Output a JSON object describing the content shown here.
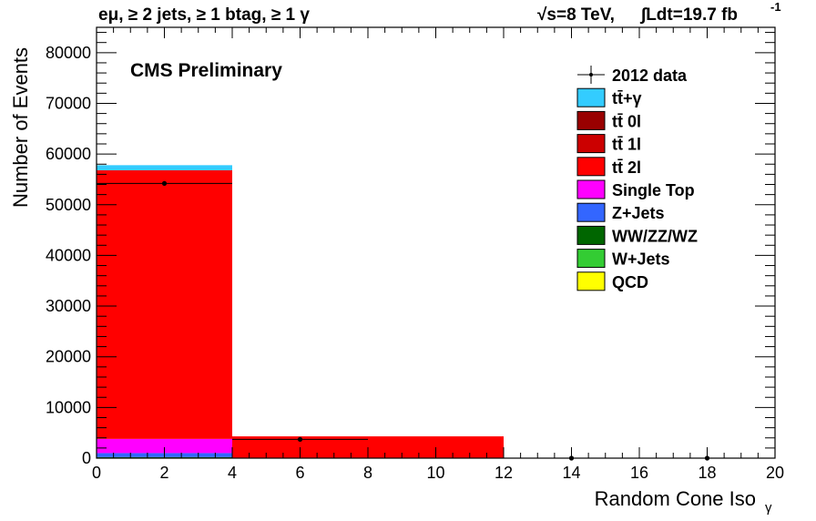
{
  "header": {
    "left_title": "eμ, ≥ 2 jets, ≥ 1 btag, ≥ 1 γ",
    "right_energy": "√s=8 TeV,",
    "right_lumi": "∫Ldt=19.7 fb",
    "right_lumi_exp": "-1"
  },
  "chart_data": {
    "type": "bar",
    "subtype": "stacked-histogram",
    "annotation": "CMS Preliminary",
    "xlabel": "Random Cone Iso",
    "xlabel_sub": "γ",
    "ylabel": "Number of Events",
    "xlim": [
      0,
      20
    ],
    "ylim": [
      0,
      85000
    ],
    "x_ticks": [
      0,
      2,
      4,
      6,
      8,
      10,
      12,
      14,
      16,
      18,
      20
    ],
    "x_tick_labels": [
      "0",
      "2",
      "4",
      "6",
      "8",
      "10",
      "12",
      "14",
      "16",
      "18",
      "20"
    ],
    "y_ticks": [
      0,
      10000,
      20000,
      30000,
      40000,
      50000,
      60000,
      70000,
      80000
    ],
    "y_tick_labels": [
      "0",
      "10000",
      "20000",
      "30000",
      "40000",
      "50000",
      "60000",
      "70000",
      "80000"
    ],
    "bins": [
      {
        "low": 0,
        "high": 4
      },
      {
        "low": 4,
        "high": 12
      },
      {
        "low": 12,
        "high": 20
      }
    ],
    "series": [
      {
        "name": "QCD",
        "color": "#ffff00",
        "values": [
          0,
          0,
          0
        ]
      },
      {
        "name": "W+Jets",
        "color": "#33cc33",
        "values": [
          100,
          0,
          0
        ]
      },
      {
        "name": "WW/ZZ/WZ",
        "color": "#006600",
        "values": [
          100,
          0,
          0
        ]
      },
      {
        "name": "Z+Jets",
        "color": "#3366ff",
        "values": [
          800,
          0,
          0
        ]
      },
      {
        "name": "Single Top",
        "color": "#ff00ff",
        "values": [
          2800,
          0,
          0
        ]
      },
      {
        "name": "tt̄ 2l",
        "color": "#ff0000",
        "values": [
          53000,
          4300,
          0
        ]
      },
      {
        "name": "tt̄ 1l",
        "color": "#cc0000",
        "values": [
          0,
          0,
          0
        ]
      },
      {
        "name": "tt̄ 0l",
        "color": "#990000",
        "values": [
          0,
          0,
          0
        ]
      },
      {
        "name": "tt̄+γ",
        "color": "#33ccff",
        "values": [
          1000,
          0,
          0
        ]
      }
    ],
    "data_points": [
      {
        "x": 2,
        "y": 54200,
        "xerr": 2
      },
      {
        "x": 6,
        "y": 3700,
        "xerr": 2
      },
      {
        "x": 14,
        "y": 0,
        "xerr": 0
      },
      {
        "x": 18,
        "y": 0,
        "xerr": 0
      }
    ],
    "legend": {
      "placement": "top-right",
      "entries": [
        {
          "label": "2012 data",
          "kind": "marker",
          "color": "#000000"
        },
        {
          "label": "tt̄+γ",
          "kind": "box",
          "color": "#33ccff"
        },
        {
          "label": "tt̄ 0l",
          "kind": "box",
          "color": "#990000"
        },
        {
          "label": "tt̄ 1l",
          "kind": "box",
          "color": "#cc0000"
        },
        {
          "label": "tt̄ 2l",
          "kind": "box",
          "color": "#ff0000"
        },
        {
          "label": "Single Top",
          "kind": "box",
          "color": "#ff00ff"
        },
        {
          "label": "Z+Jets",
          "kind": "box",
          "color": "#3366ff"
        },
        {
          "label": "WW/ZZ/WZ",
          "kind": "box",
          "color": "#006600"
        },
        {
          "label": "W+Jets",
          "kind": "box",
          "color": "#33cc33"
        },
        {
          "label": "QCD",
          "kind": "box",
          "color": "#ffff00"
        }
      ]
    },
    "grid": false
  }
}
